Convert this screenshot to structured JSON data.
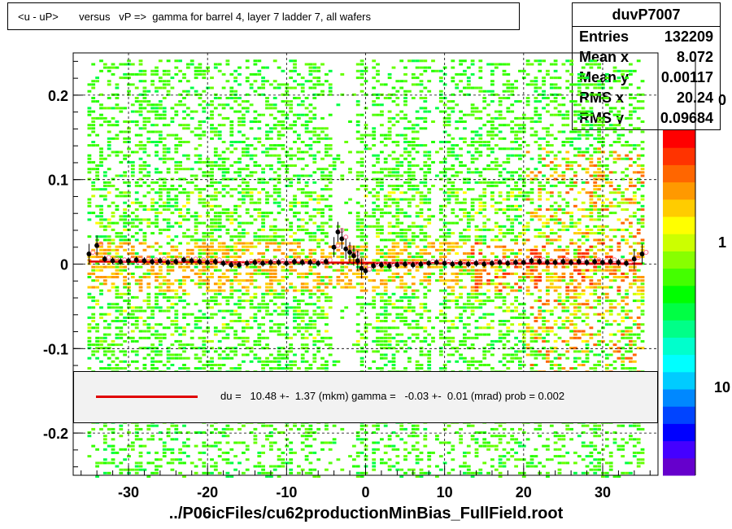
{
  "title": "<u - uP>       versus   vP =>  gamma for barrel 4, layer 7 ladder 7, all wafers",
  "stats": {
    "name": "duvP7007",
    "rows": [
      {
        "label": "Entries",
        "value": "132209"
      },
      {
        "label": "Mean x",
        "value": "8.072"
      },
      {
        "label": "Mean y",
        "value": "0.00117"
      },
      {
        "label": "RMS x",
        "value": "20.24"
      },
      {
        "label": "RMS y",
        "value": "0.09684"
      }
    ]
  },
  "fit_legend": "du =   10.48 +-  1.37 (mkm) gamma =   -0.03 +-  0.01 (mrad) prob = 0.002",
  "footer": "../P06icFiles/cu62productionMinBias_FullField.root",
  "colorbar": {
    "tick_labels": [
      "10",
      "1",
      "0"
    ],
    "colors": [
      "#6600cc",
      "#4400ff",
      "#0000ff",
      "#0044ff",
      "#0088ff",
      "#00ccff",
      "#00ffff",
      "#00ffcc",
      "#00ff88",
      "#00ff44",
      "#00ff00",
      "#44ff00",
      "#88ff00",
      "#ccff00",
      "#ffff00",
      "#ffcc00",
      "#ff9900",
      "#ff6600",
      "#ff3300",
      "#ff0000"
    ]
  },
  "chart_data": {
    "type": "heatmap",
    "title": "<u - uP>       versus   vP =>  gamma for barrel 4, layer 7 ladder 7, all wafers",
    "xlabel": "",
    "ylabel": "",
    "xlim": [
      -37,
      37
    ],
    "ylim": [
      -0.25,
      0.25
    ],
    "x_ticks": [
      -30,
      -20,
      -10,
      0,
      10,
      20,
      30
    ],
    "x_tick_labels": [
      "-30",
      "-20",
      "-10",
      "0",
      "10",
      "20",
      "30"
    ],
    "y_ticks": [
      -0.2,
      -0.1,
      0,
      0.1,
      0.2
    ],
    "y_tick_labels": [
      "-0.2",
      "-0.1",
      "0",
      "0.1",
      "0.2"
    ],
    "grid": true,
    "profile": {
      "x": [
        -35,
        -34,
        -33,
        -32,
        -31,
        -30,
        -29,
        -28,
        -27,
        -26,
        -25,
        -24,
        -23,
        -22,
        -21,
        -20,
        -19,
        -18,
        -17,
        -16,
        -15,
        -14,
        -13,
        -12,
        -11,
        -10,
        -9,
        -8,
        -7,
        -6,
        -5,
        -4,
        -3.5,
        -3,
        -2.5,
        -2,
        -1.5,
        -1,
        -0.5,
        0,
        1,
        2,
        3,
        4,
        5,
        6,
        7,
        8,
        9,
        10,
        11,
        12,
        13,
        14,
        15,
        16,
        17,
        18,
        19,
        20,
        21,
        22,
        23,
        24,
        25,
        26,
        27,
        28,
        29,
        30,
        31,
        32,
        33,
        34,
        35
      ],
      "y": [
        0.012,
        0.022,
        0.006,
        0.004,
        0.003,
        0.004,
        0.005,
        0.004,
        0.003,
        0.004,
        0.002,
        0.003,
        0.005,
        0.004,
        0.003,
        0.002,
        0.003,
        0.001,
        -0.001,
        -0.001,
        0.001,
        0.002,
        0.001,
        0.002,
        0.002,
        0.001,
        0.003,
        0.002,
        0.002,
        0.001,
        0.003,
        0.02,
        0.038,
        0.03,
        0.018,
        0.014,
        0.01,
        0.004,
        -0.005,
        -0.008,
        -0.002,
        -0.001,
        -0.002,
        -0.001,
        0.0,
        -0.001,
        0.0,
        0.001,
        0.002,
        0.001,
        0.0,
        0.001,
        0.0,
        0.001,
        0.0,
        0.001,
        0.002,
        0.001,
        0.002,
        0.002,
        0.004,
        0.003,
        0.002,
        0.002,
        0.003,
        0.002,
        0.003,
        0.002,
        0.003,
        0.002,
        0.003,
        0.002,
        0.001,
        0.006,
        0.012
      ]
    },
    "fit_line": {
      "x": [
        -35,
        35
      ],
      "y": [
        0.003,
        0.0002
      ],
      "color": "#e00000"
    }
  }
}
